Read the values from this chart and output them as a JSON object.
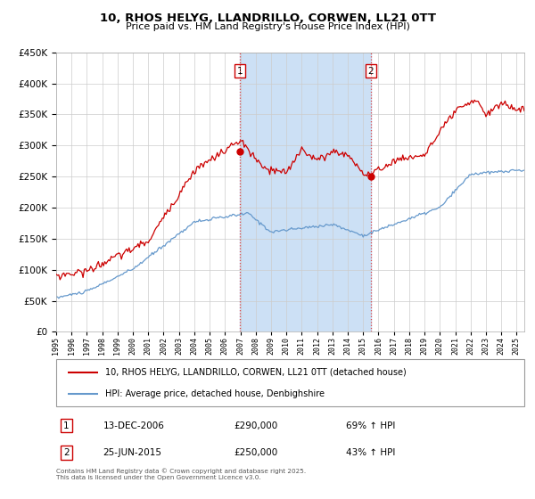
{
  "title": "10, RHOS HELYG, LLANDRILLO, CORWEN, LL21 0TT",
  "subtitle": "Price paid vs. HM Land Registry's House Price Index (HPI)",
  "red_label": "10, RHOS HELYG, LLANDRILLO, CORWEN, LL21 0TT (detached house)",
  "blue_label": "HPI: Average price, detached house, Denbighshire",
  "marker1_date": "13-DEC-2006",
  "marker1_price": 290000,
  "marker1_pct": "69% ↑ HPI",
  "marker2_date": "25-JUN-2015",
  "marker2_price": 250000,
  "marker2_pct": "43% ↑ HPI",
  "footnote": "Contains HM Land Registry data © Crown copyright and database right 2025.\nThis data is licensed under the Open Government Licence v3.0.",
  "red_color": "#cc0000",
  "blue_color": "#6699cc",
  "bg_color": "#ffffff",
  "grid_color": "#cccccc",
  "shade_color": "#cce0f5",
  "marker1_x": 2006.96,
  "marker2_x": 2015.49,
  "ylim": [
    0,
    450000
  ],
  "xlim_start": 1995,
  "xlim_end": 2025.5
}
